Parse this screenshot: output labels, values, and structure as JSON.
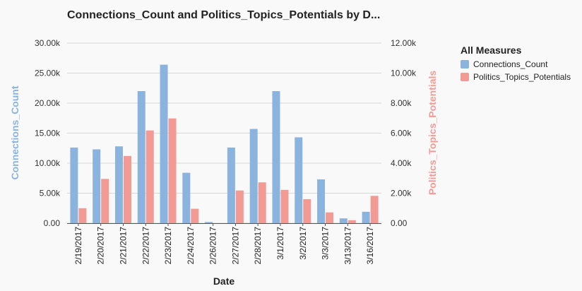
{
  "chart_data": {
    "type": "bar",
    "title": "Connections_Count and Politics_Topics_Potentials by D...",
    "xlabel": "Date",
    "ylabel": "Connections_Count",
    "y2label": "Politics_Topics_Potentials",
    "categories": [
      "2/19/2017",
      "2/20/2017",
      "2/21/2017",
      "2/22/2017",
      "2/23/2017",
      "2/24/2017",
      "2/26/2017",
      "2/27/2017",
      "2/28/2017",
      "3/1/2017",
      "3/2/2017",
      "3/3/2017",
      "3/13/2017",
      "3/16/2017"
    ],
    "series": [
      {
        "name": "Connections_Count",
        "axis": "left",
        "color": "#8ab4dd",
        "values": [
          12600,
          12300,
          12800,
          22000,
          26400,
          8400,
          200,
          12600,
          15700,
          22000,
          14300,
          7300,
          800,
          1900
        ]
      },
      {
        "name": "Politics_Topics_Potentials",
        "axis": "right",
        "color": "#f29a94",
        "values": [
          1000,
          2950,
          4480,
          6180,
          6980,
          960,
          0,
          2180,
          2720,
          2220,
          1600,
          720,
          200,
          1820
        ]
      }
    ],
    "ylim": [
      0,
      30000
    ],
    "y2lim": [
      0,
      12000
    ],
    "yticks": [
      "0.00",
      "5.00k",
      "10.00k",
      "15.00k",
      "20.00k",
      "25.00k",
      "30.00k"
    ],
    "y2ticks": [
      "0.00",
      "2.00k",
      "4.00k",
      "6.00k",
      "8.00k",
      "10.00k",
      "12.00k"
    ],
    "grid": true,
    "legend": {
      "title": "All Measures",
      "placement": "right",
      "items": [
        "Connections_Count",
        "Politics_Topics_Potentials"
      ]
    }
  }
}
